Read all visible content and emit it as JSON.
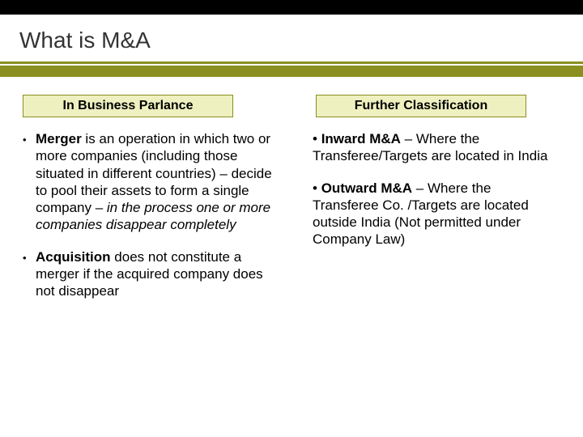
{
  "title": "What is M&A",
  "colors": {
    "black_bar": "#000000",
    "olive": "#8a8f1f",
    "header_fill": "#eef0c0",
    "background": "#ffffff",
    "text": "#000000",
    "title_text": "#333333"
  },
  "typography": {
    "title_fontsize": 28,
    "header_fontsize": 16,
    "body_fontsize": 17,
    "font_family": "Arial"
  },
  "left": {
    "header": "In Business Parlance",
    "items": [
      {
        "bold": "Merger",
        "normal1": " is an operation in which two or more companies (including those situated in different countries) – decide to pool their assets to form a single company – ",
        "italic": "in the process one or more companies disappear completely",
        "normal2": ""
      },
      {
        "bold": "Acquisition",
        "normal1": " does not constitute a merger if the acquired company does not disappear",
        "italic": "",
        "normal2": ""
      }
    ]
  },
  "right": {
    "header": "Further Classification",
    "items": [
      {
        "bold": "Inward M&A",
        "normal1": " – Where the Transferee/Targets are located in India",
        "italic": "",
        "normal2": ""
      },
      {
        "bold": "Outward M&A",
        "normal1": " – Where  the Transferee Co. /Targets are located outside India (Not permitted under Company Law)",
        "italic": "",
        "normal2": ""
      }
    ]
  }
}
